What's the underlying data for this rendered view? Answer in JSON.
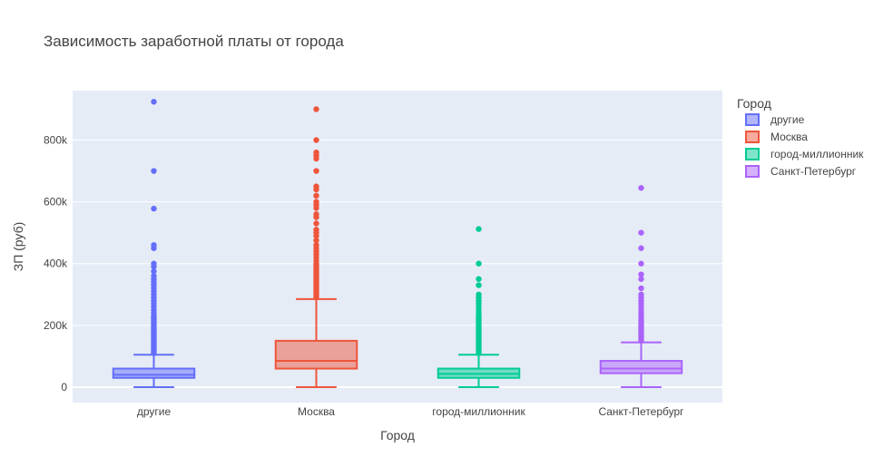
{
  "chart_data": {
    "type": "box",
    "title": "Зависимость заработной платы от города",
    "xlabel": "Город",
    "ylabel": "ЗП (руб)",
    "ylim": [
      -50000,
      960000
    ],
    "y_ticks": [
      0,
      200000,
      400000,
      600000,
      800000
    ],
    "y_tick_labels": [
      "0",
      "200k",
      "400k",
      "600k",
      "800k"
    ],
    "grid": true,
    "legend": {
      "title": "Город",
      "placement": "right"
    },
    "categories": [
      "другие",
      "Москва",
      "город-миллионник",
      "Санкт-Петербург"
    ],
    "series": [
      {
        "name": "другие",
        "color": "#636efa",
        "min": 0,
        "q1": 30000,
        "median": 40000,
        "q3": 60000,
        "upper_fence": 105000,
        "outliers": [
          110000,
          115000,
          120000,
          125000,
          130000,
          135000,
          140000,
          145000,
          150000,
          155000,
          160000,
          165000,
          170000,
          175000,
          180000,
          185000,
          190000,
          195000,
          200000,
          205000,
          210000,
          215000,
          220000,
          225000,
          230000,
          240000,
          250000,
          260000,
          270000,
          280000,
          290000,
          300000,
          310000,
          320000,
          330000,
          340000,
          350000,
          360000,
          375000,
          390000,
          400000,
          450000,
          460000,
          578000,
          700000,
          924000
        ]
      },
      {
        "name": "Москва",
        "color": "#ef553b",
        "min": 0,
        "q1": 60000,
        "median": 85000,
        "q3": 150000,
        "upper_fence": 285000,
        "outliers": [
          290000,
          295000,
          300000,
          305000,
          310000,
          315000,
          320000,
          325000,
          330000,
          335000,
          340000,
          345000,
          350000,
          355000,
          360000,
          365000,
          370000,
          375000,
          380000,
          385000,
          390000,
          395000,
          400000,
          410000,
          420000,
          430000,
          440000,
          450000,
          460000,
          475000,
          490000,
          500000,
          510000,
          530000,
          550000,
          560000,
          580000,
          590000,
          600000,
          620000,
          640000,
          650000,
          700000,
          740000,
          750000,
          760000,
          800000,
          900000
        ]
      },
      {
        "name": "город-миллионник",
        "color": "#00cc96",
        "min": 0,
        "q1": 30000,
        "median": 43000,
        "q3": 60000,
        "upper_fence": 105000,
        "outliers": [
          110000,
          115000,
          120000,
          125000,
          130000,
          135000,
          140000,
          145000,
          150000,
          155000,
          160000,
          165000,
          170000,
          175000,
          180000,
          185000,
          190000,
          195000,
          200000,
          205000,
          210000,
          215000,
          220000,
          225000,
          230000,
          240000,
          250000,
          260000,
          270000,
          280000,
          290000,
          300000,
          330000,
          350000,
          400000,
          512000
        ]
      },
      {
        "name": "Санкт-Петербург",
        "color": "#ab63fa",
        "min": 0,
        "q1": 45000,
        "median": 60000,
        "q3": 85000,
        "upper_fence": 145000,
        "outliers": [
          150000,
          155000,
          160000,
          165000,
          170000,
          175000,
          180000,
          185000,
          190000,
          195000,
          200000,
          205000,
          210000,
          215000,
          220000,
          230000,
          240000,
          250000,
          260000,
          270000,
          280000,
          290000,
          300000,
          320000,
          350000,
          365000,
          400000,
          450000,
          500000,
          645000
        ]
      }
    ]
  }
}
